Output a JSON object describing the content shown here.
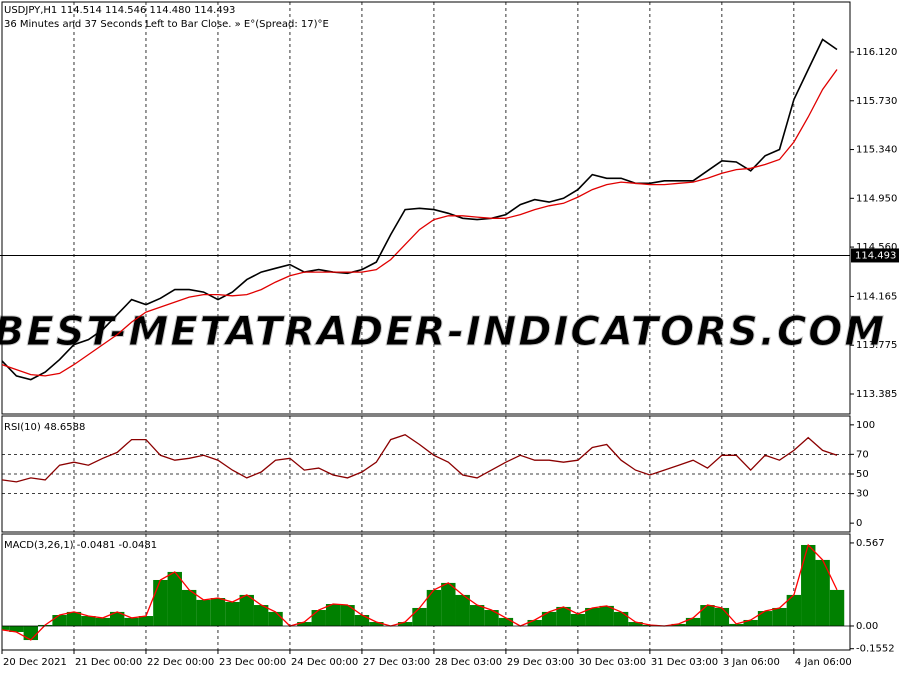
{
  "chart_data": [
    {
      "type": "line",
      "title": "USDJPY,H1  114.514 114.546 114.480 114.493",
      "subtitle": "36 Minutes and 37 Seconds Left to Bar Close. » E°(Spread: 17)°E",
      "annotation": "BEST-METATRADER-INDICATORS.COM",
      "x": [
        0,
        2,
        4,
        6,
        8,
        10,
        12,
        14,
        16,
        18,
        20,
        22,
        24,
        26,
        28,
        30,
        32,
        34,
        36,
        38,
        40,
        42,
        44,
        46,
        48,
        50,
        52,
        54,
        56,
        58,
        60,
        62,
        64,
        66,
        68,
        70,
        72,
        74,
        76,
        78,
        80,
        82,
        84,
        86,
        88,
        90,
        92,
        94,
        96,
        98,
        100,
        102,
        104,
        106,
        108,
        110,
        112,
        114,
        116
      ],
      "xlim": [
        0,
        117.8
      ],
      "ylim": [
        113.225,
        116.52
      ],
      "yticks": [
        {
          "value": 116.12,
          "label": "116.120"
        },
        {
          "value": 115.73,
          "label": "115.730"
        },
        {
          "value": 115.34,
          "label": "115.340"
        },
        {
          "value": 114.95,
          "label": "114.950"
        },
        {
          "value": 114.56,
          "label": "114.560"
        },
        {
          "value": 114.165,
          "label": "114.165"
        },
        {
          "value": 113.775,
          "label": "113.775"
        },
        {
          "value": 113.385,
          "label": "113.385"
        }
      ],
      "current_price": 114.493,
      "series": [
        {
          "color": "#000000",
          "values": [
            113.65,
            113.53,
            113.5,
            113.56,
            113.66,
            113.78,
            113.82,
            113.9,
            114.02,
            114.14,
            114.1,
            114.15,
            114.22,
            114.22,
            114.2,
            114.14,
            114.2,
            114.3,
            114.36,
            114.39,
            114.42,
            114.36,
            114.38,
            114.36,
            114.35,
            114.38,
            114.44,
            114.66,
            114.86,
            114.87,
            114.86,
            114.83,
            114.79,
            114.78,
            114.79,
            114.82,
            114.9,
            114.94,
            114.92,
            114.95,
            115.02,
            115.14,
            115.11,
            115.11,
            115.07,
            115.07,
            115.09,
            115.09,
            115.09,
            115.17,
            115.25,
            115.24,
            115.17,
            115.29,
            115.34,
            115.74,
            115.98,
            116.22,
            116.14
          ]
        },
        {
          "color": "#e00000",
          "values": [
            113.62,
            113.58,
            113.54,
            113.53,
            113.55,
            113.62,
            113.7,
            113.78,
            113.86,
            113.96,
            114.04,
            114.08,
            114.12,
            114.16,
            114.18,
            114.18,
            114.17,
            114.18,
            114.22,
            114.28,
            114.33,
            114.36,
            114.36,
            114.36,
            114.36,
            114.36,
            114.38,
            114.46,
            114.58,
            114.7,
            114.78,
            114.81,
            114.81,
            114.8,
            114.79,
            114.79,
            114.82,
            114.86,
            114.89,
            114.91,
            114.96,
            115.02,
            115.06,
            115.08,
            115.07,
            115.06,
            115.06,
            115.07,
            115.08,
            115.11,
            115.15,
            115.18,
            115.19,
            115.22,
            115.26,
            115.4,
            115.6,
            115.82,
            115.98
          ]
        }
      ]
    },
    {
      "type": "line",
      "title": "RSI(10) 48.6588",
      "x": [
        0,
        2,
        4,
        6,
        8,
        10,
        12,
        14,
        16,
        18,
        20,
        22,
        24,
        26,
        28,
        30,
        32,
        34,
        36,
        38,
        40,
        42,
        44,
        46,
        48,
        50,
        52,
        54,
        56,
        58,
        60,
        62,
        64,
        66,
        68,
        70,
        72,
        74,
        76,
        78,
        80,
        82,
        84,
        86,
        88,
        90,
        92,
        94,
        96,
        98,
        100,
        102,
        104,
        106,
        108,
        110,
        112,
        114,
        116
      ],
      "xlim": [
        0,
        117.8
      ],
      "ylim": [
        -9,
        109
      ],
      "yticks": [
        100,
        70,
        50,
        30,
        0
      ],
      "levels": [
        70,
        50,
        30
      ],
      "series": [
        {
          "color": "#8b0000",
          "values": [
            44,
            42,
            46,
            44,
            59,
            62,
            59,
            66,
            72,
            85,
            85,
            69,
            64,
            66,
            69,
            64,
            54,
            46,
            52,
            64,
            66,
            54,
            56,
            49,
            46,
            52,
            62,
            85,
            90,
            80,
            69,
            62,
            49,
            46,
            54,
            62,
            69,
            64,
            64,
            62,
            64,
            77,
            80,
            64,
            54,
            49,
            54,
            59,
            64,
            56,
            69,
            69,
            54,
            69,
            64,
            74,
            87,
            74,
            69
          ]
        }
      ]
    },
    {
      "type": "bar",
      "title": "MACD(3,26,1) -0.0481 -0.0481",
      "x": [
        0,
        2,
        4,
        6,
        8,
        10,
        12,
        14,
        16,
        18,
        20,
        22,
        24,
        26,
        28,
        30,
        32,
        34,
        36,
        38,
        40,
        42,
        44,
        46,
        48,
        50,
        52,
        54,
        56,
        58,
        60,
        62,
        64,
        66,
        68,
        70,
        72,
        74,
        76,
        78,
        80,
        82,
        84,
        86,
        88,
        90,
        92,
        94,
        96,
        98,
        100,
        102,
        104,
        106,
        108,
        110,
        112,
        114,
        116
      ],
      "xlim": [
        0,
        117.8
      ],
      "ylim": [
        -0.164,
        0.628
      ],
      "yticks": [
        0.567,
        {
          "value": 0,
          "label": "0.00"
        },
        -0.1552
      ],
      "xticks": [
        {
          "value": 0,
          "label": "20 Dec 2021"
        },
        {
          "value": 10,
          "label": "21 Dec 00:00"
        },
        {
          "value": 20,
          "label": "22 Dec 00:00"
        },
        {
          "value": 30,
          "label": "23 Dec 00:00"
        },
        {
          "value": 40,
          "label": "24 Dec 00:00"
        },
        {
          "value": 50,
          "label": "27 Dec 03:00"
        },
        {
          "value": 60,
          "label": "28 Dec 03:00"
        },
        {
          "value": 70,
          "label": "29 Dec 03:00"
        },
        {
          "value": 80,
          "label": "30 Dec 03:00"
        },
        {
          "value": 90,
          "label": "31 Dec 03:00"
        },
        {
          "value": 100,
          "label": "3 Jan 06:00"
        },
        {
          "value": 110,
          "label": "4 Jan 06:00"
        }
      ],
      "series": [
        {
          "color": "#008000",
          "edge_color": "#ff0000",
          "values": [
            -0.027,
            -0.041,
            -0.096,
            0.007,
            0.075,
            0.096,
            0.068,
            0.055,
            0.096,
            0.055,
            0.068,
            0.314,
            0.369,
            0.246,
            0.178,
            0.191,
            0.164,
            0.212,
            0.143,
            0.096,
            0,
            0.027,
            0.109,
            0.15,
            0.143,
            0.075,
            0.027,
            0,
            0.027,
            0.123,
            0.246,
            0.294,
            0.212,
            0.143,
            0.109,
            0.055,
            0,
            0.041,
            0.096,
            0.13,
            0.082,
            0.123,
            0.137,
            0.096,
            0.027,
            0.007,
            0,
            0.014,
            0.055,
            0.143,
            0.123,
            0.014,
            0.041,
            0.102,
            0.123,
            0.212,
            0.553,
            0.451,
            0.246
          ]
        }
      ]
    }
  ]
}
